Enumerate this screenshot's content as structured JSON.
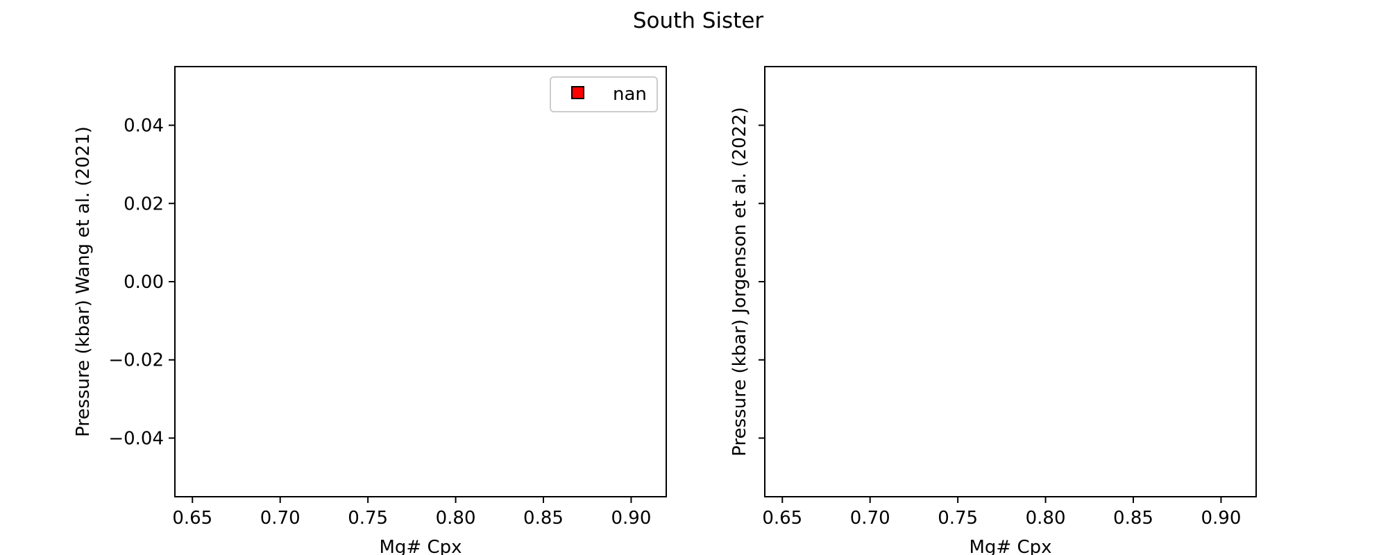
{
  "figure": {
    "title": "South Sister"
  },
  "chart_data": [
    {
      "type": "scatter",
      "xlabel": "Mg# Cpx",
      "ylabel": "Pressure (kbar) Wang et al. (2021)",
      "xlim": [
        0.64,
        0.92
      ],
      "ylim": [
        -0.055,
        0.055
      ],
      "xticks": [
        0.65,
        0.7,
        0.75,
        0.8,
        0.85,
        0.9
      ],
      "xtick_labels": [
        "0.65",
        "0.70",
        "0.75",
        "0.80",
        "0.85",
        "0.90"
      ],
      "yticks": [
        0.04,
        0.02,
        0.0,
        -0.02,
        -0.04
      ],
      "ytick_labels": [
        "0.04",
        "0.02",
        "0.00",
        "−0.02",
        "−0.04"
      ],
      "series": [
        {
          "name": "nan",
          "points": [],
          "marker": "square",
          "color": "#ff0000",
          "edgecolor": "#000000"
        }
      ],
      "legend": {
        "position": "upper right",
        "entries": [
          "nan"
        ]
      },
      "grid": false
    },
    {
      "type": "scatter",
      "xlabel": "Mg# Cpx",
      "ylabel": "Pressure (kbar) Jorgenson et al. (2022)",
      "xlim": [
        0.64,
        0.92
      ],
      "ylim": [
        -0.055,
        0.055
      ],
      "xticks": [
        0.65,
        0.7,
        0.75,
        0.8,
        0.85,
        0.9
      ],
      "xtick_labels": [
        "0.65",
        "0.70",
        "0.75",
        "0.80",
        "0.85",
        "0.90"
      ],
      "yticks": [
        0.04,
        0.02,
        0.0,
        -0.02,
        -0.04
      ],
      "ytick_labels": [],
      "series": [],
      "grid": false
    }
  ]
}
